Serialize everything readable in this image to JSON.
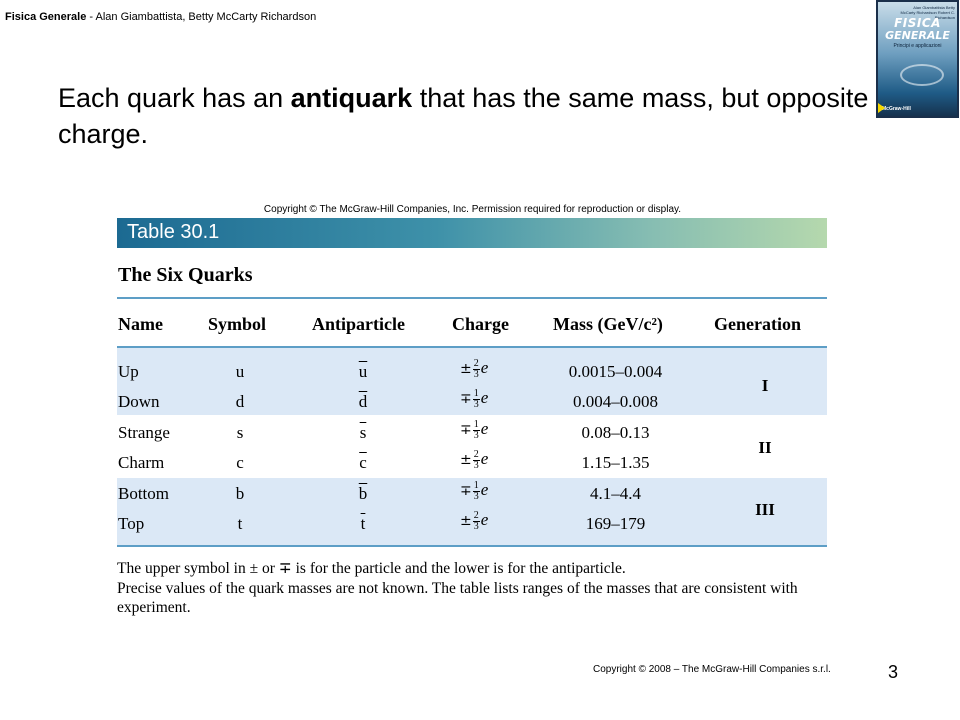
{
  "header": {
    "book": "Fisica Generale",
    "authors": " - Alan Giambattista, Betty McCarty Richardson"
  },
  "cover": {
    "authors": "Alan Giambattista Betty McCarty Richardson Robert C. Richardson",
    "title_line1": "FISICA",
    "title_line2": "GENERALE",
    "subtitle": "Principi e applicazioni",
    "publisher": "McGraw-Hill"
  },
  "slide": {
    "heading_part1": "Each quark has an ",
    "heading_bold": "antiquark",
    "heading_part2": " that has the same mass, but opposite charge."
  },
  "table": {
    "copyright": "Copyright © The McGraw-Hill Companies, Inc. Permission required for reproduction or display.",
    "label": "Table 30.1",
    "caption": "The Six Quarks",
    "columns": {
      "name": "Name",
      "symbol": "Symbol",
      "antiparticle": "Antiparticle",
      "charge": "Charge",
      "mass": "Mass (GeV/c²)",
      "generation": "Generation"
    },
    "rows": [
      {
        "name": "Up",
        "symbol": "u",
        "anti": "u",
        "sign": "±",
        "num": "2",
        "den": "3",
        "unit": "e",
        "mass": "0.0015–0.004"
      },
      {
        "name": "Down",
        "symbol": "d",
        "anti": "d",
        "sign": "∓",
        "num": "1",
        "den": "3",
        "unit": "e",
        "mass": "0.004–0.008"
      },
      {
        "name": "Strange",
        "symbol": "s",
        "anti": "s",
        "sign": "∓",
        "num": "1",
        "den": "3",
        "unit": "e",
        "mass": "0.08–0.13"
      },
      {
        "name": "Charm",
        "symbol": "c",
        "anti": "c",
        "sign": "±",
        "num": "2",
        "den": "3",
        "unit": "e",
        "mass": "1.15–1.35"
      },
      {
        "name": "Bottom",
        "symbol": "b",
        "anti": "b",
        "sign": "∓",
        "num": "1",
        "den": "3",
        "unit": "e",
        "mass": "4.1–4.4"
      },
      {
        "name": "Top",
        "symbol": "t",
        "anti": "t",
        "sign": "±",
        "num": "2",
        "den": "3",
        "unit": "e",
        "mass": "169–179"
      }
    ],
    "generations": [
      "I",
      "II",
      "III"
    ],
    "notes": [
      "The upper symbol in ± or ∓ is for the particle and the lower is for the antiparticle.",
      "Precise values of the quark masses are not known. The table lists ranges of the masses that are consistent with experiment."
    ],
    "band_color": "#dbe8f6",
    "rule_color": "#5d9ec6"
  },
  "footer": {
    "copyright": "Copyright © 2008 – The McGraw-Hill Companies s.r.l.",
    "page": "3"
  }
}
